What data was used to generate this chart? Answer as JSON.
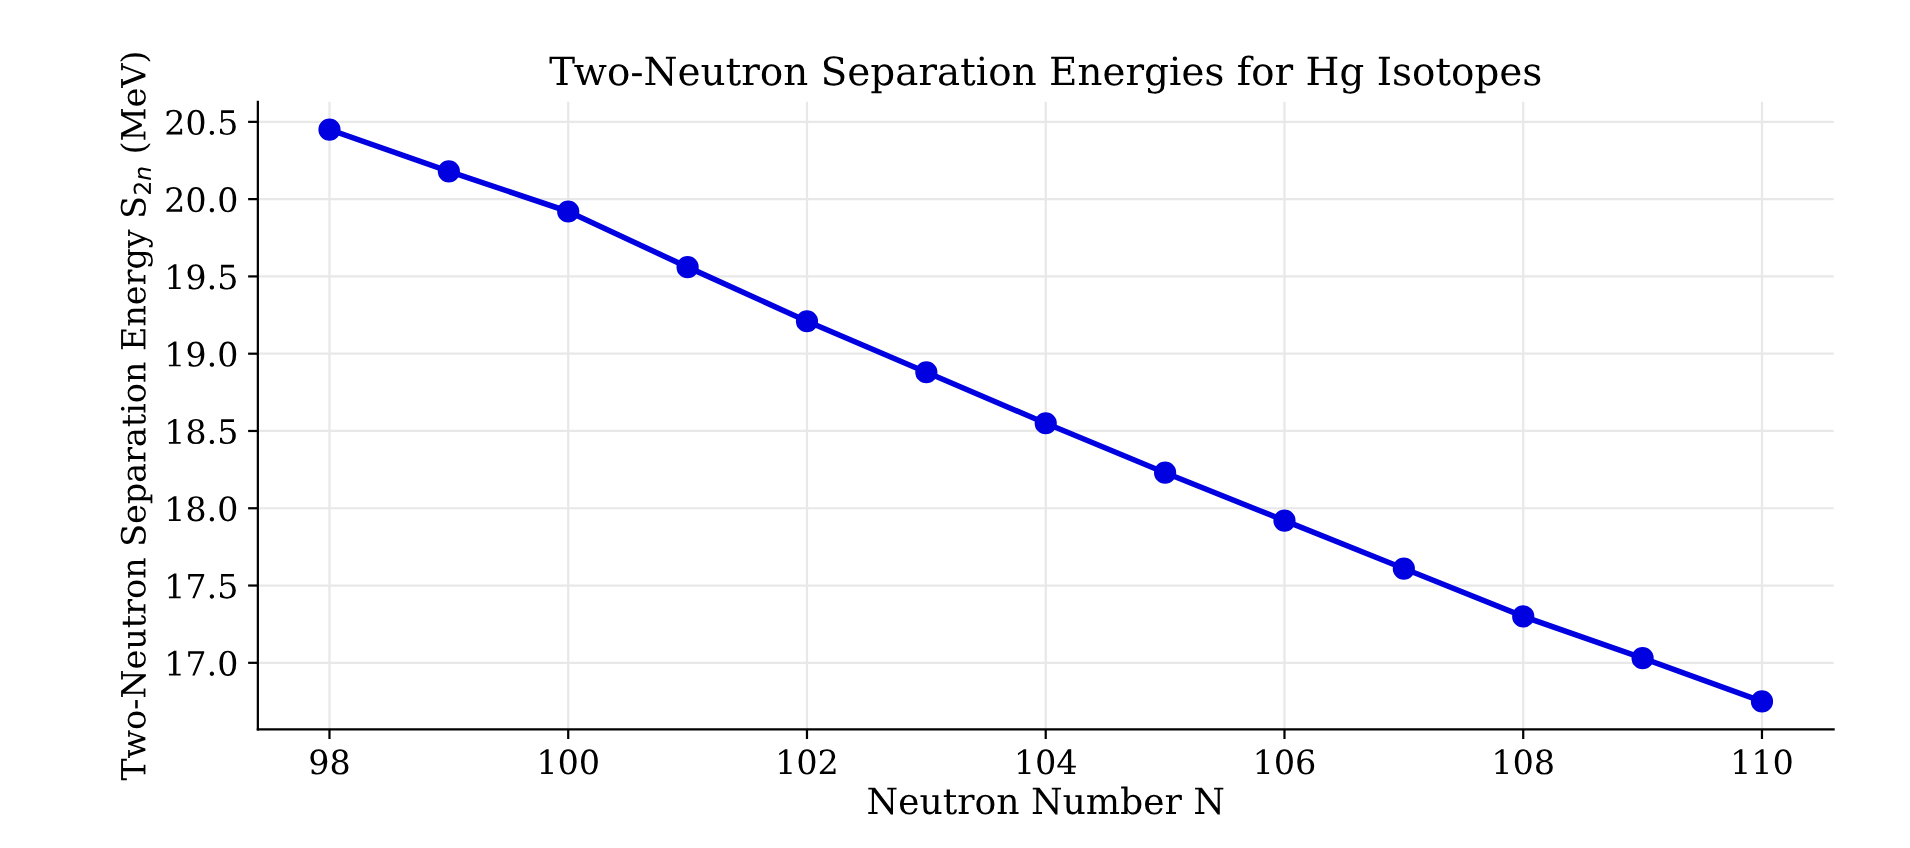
{
  "chart_data": {
    "type": "line",
    "title": "Two-Neutron Separation Energies for Hg Isotopes",
    "xlabel": "Neutron Number N",
    "ylabel": "Two-Neutron Separation Energy S$_{2n}$ (MeV)",
    "x": [
      98,
      99,
      100,
      101,
      102,
      103,
      104,
      105,
      106,
      107,
      108,
      109,
      110
    ],
    "series": [
      {
        "color": "#0000e0",
        "values": [
          20.45,
          20.18,
          19.92,
          19.56,
          19.21,
          18.88,
          18.55,
          18.23,
          17.92,
          17.61,
          17.3,
          17.03,
          16.75
        ]
      }
    ],
    "xlim": [
      97.4,
      110.6
    ],
    "ylim": [
      16.57,
      20.63
    ],
    "xticks": [
      98,
      100,
      102,
      104,
      106,
      108,
      110
    ],
    "yticks": [
      {
        "value": 17,
        "label": "17.0"
      },
      {
        "value": 17.5,
        "label": "17.5"
      },
      {
        "value": 18,
        "label": "18.0"
      },
      {
        "value": 18.5,
        "label": "18.5"
      },
      {
        "value": 19,
        "label": "19.0"
      },
      {
        "value": 19.5,
        "label": "19.5"
      },
      {
        "value": 20,
        "label": "20.0"
      },
      {
        "value": 20.5,
        "label": "20.5"
      }
    ],
    "grid": true,
    "marker": "circle",
    "line_style": "solid",
    "legend": false
  }
}
